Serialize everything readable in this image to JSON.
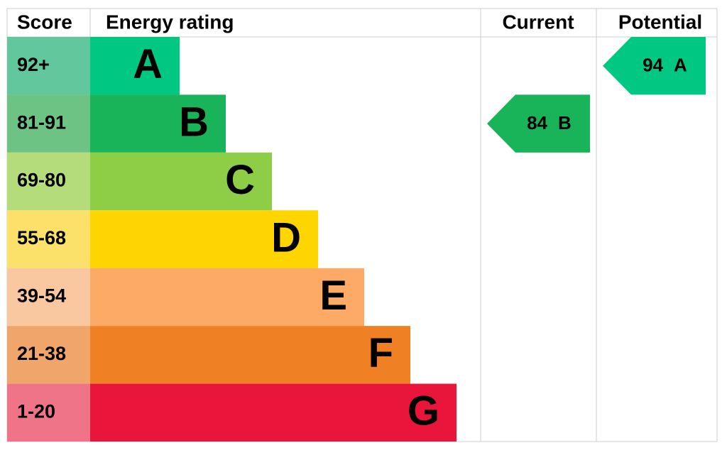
{
  "headers": {
    "score": "Score",
    "rating": "Energy rating",
    "current": "Current",
    "potential": "Potential"
  },
  "bands": [
    {
      "score": "92+",
      "letter": "A",
      "color": "#00c781",
      "light": "#63c79d"
    },
    {
      "score": "81-91",
      "letter": "B",
      "color": "#19b459",
      "light": "#6cc384"
    },
    {
      "score": "69-80",
      "letter": "C",
      "color": "#8dce46",
      "light": "#b5dc7a"
    },
    {
      "score": "55-68",
      "letter": "D",
      "color": "#ffd500",
      "light": "#fbe06a"
    },
    {
      "score": "39-54",
      "letter": "E",
      "color": "#fcaa65",
      "light": "#f9c7a0"
    },
    {
      "score": "21-38",
      "letter": "F",
      "color": "#ef8023",
      "light": "#f0a56a"
    },
    {
      "score": "1-20",
      "letter": "G",
      "color": "#e9153b",
      "light": "#f07487"
    }
  ],
  "current": {
    "value": 84,
    "letter": "B"
  },
  "potential": {
    "value": 94,
    "letter": "A"
  }
}
